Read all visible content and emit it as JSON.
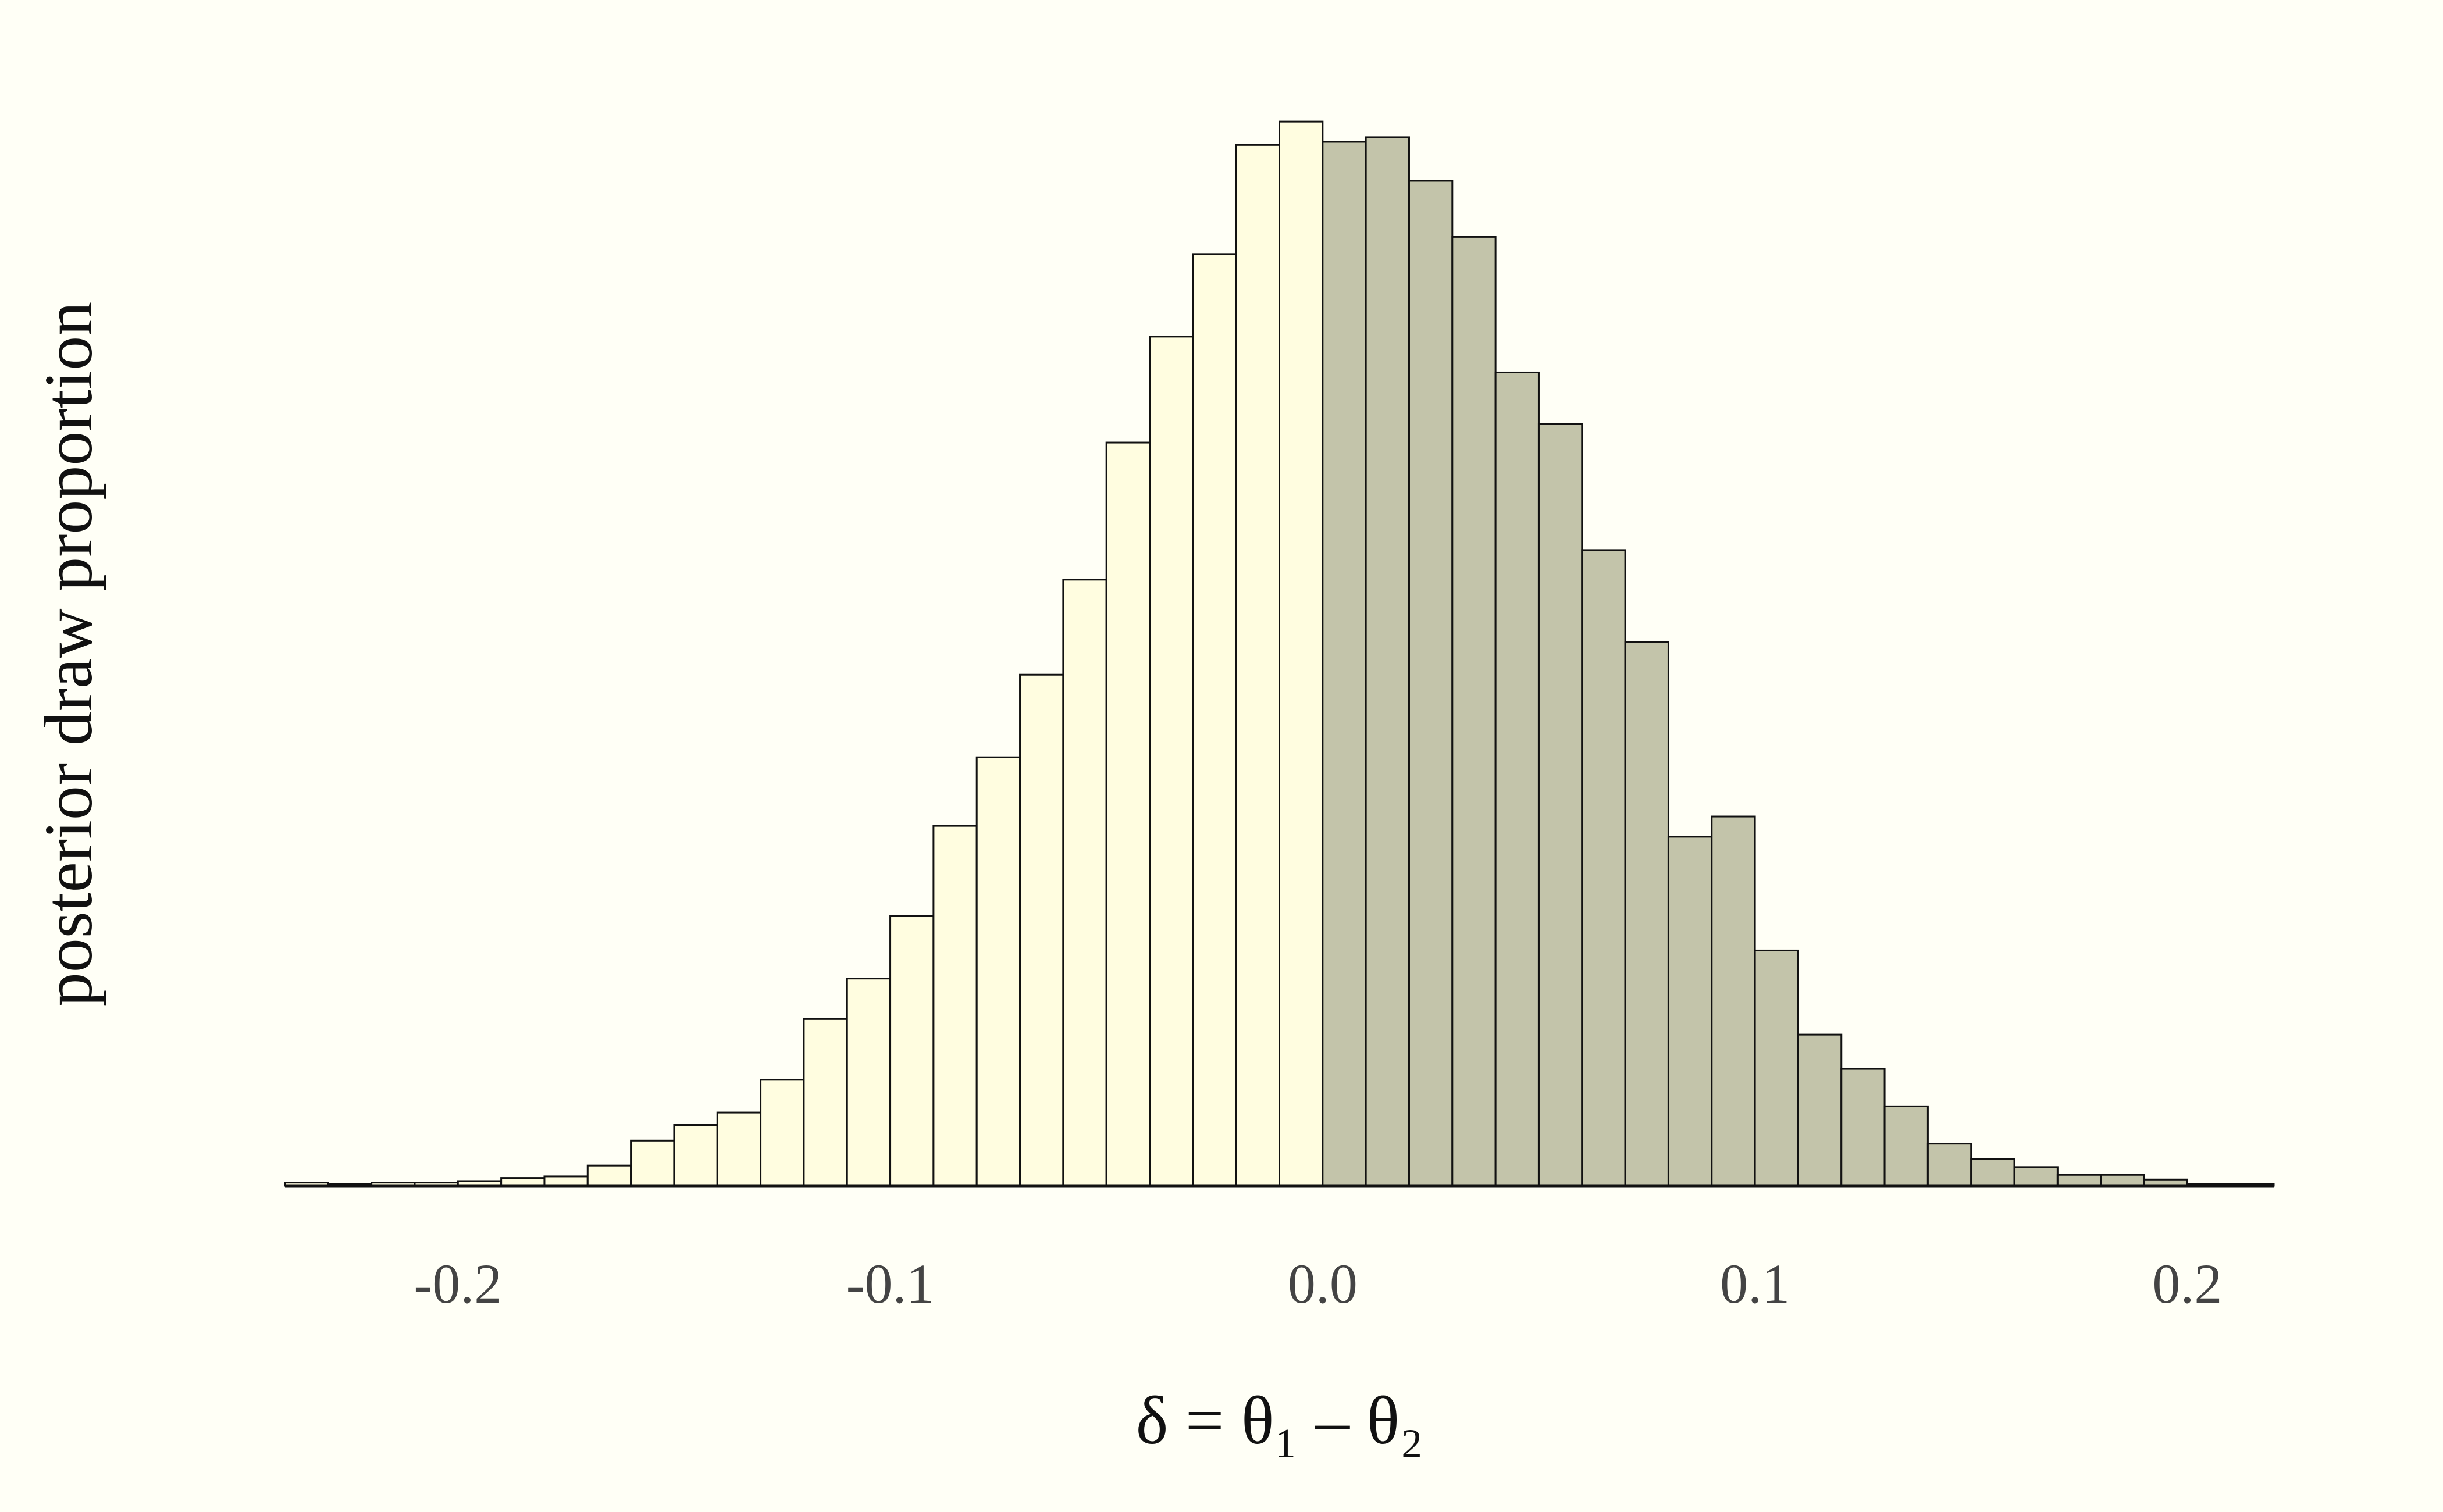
{
  "chart_data": {
    "type": "histogram",
    "x_label": "δ = θ₁ – θ₂",
    "y_label": "posterior draw proportion",
    "bins": [
      -0.24,
      -0.23,
      -0.22,
      -0.21,
      -0.2,
      -0.19,
      -0.18,
      -0.17,
      -0.16,
      -0.15,
      -0.14,
      -0.13,
      -0.12,
      -0.11,
      -0.1,
      -0.09,
      -0.08,
      -0.07,
      -0.06,
      -0.05,
      -0.04,
      -0.03,
      -0.02,
      -0.01,
      0.0,
      0.01,
      0.02,
      0.03,
      0.04,
      0.05,
      0.06,
      0.07,
      0.08,
      0.09,
      0.1,
      0.11,
      0.12,
      0.13,
      0.14,
      0.15,
      0.16,
      0.17,
      0.18,
      0.19,
      0.2,
      0.21,
      0.22
    ],
    "values": [
      0.0002,
      0.0001,
      0.0002,
      0.0002,
      0.0003,
      0.0005,
      0.0006,
      0.0013,
      0.0029,
      0.0039,
      0.0047,
      0.0068,
      0.0107,
      0.0133,
      0.0173,
      0.0231,
      0.0275,
      0.0328,
      0.0389,
      0.0477,
      0.0545,
      0.0598,
      0.0668,
      0.0683,
      0.067,
      0.0673,
      0.0645,
      0.0609,
      0.0522,
      0.0489,
      0.0408,
      0.0349,
      0.0224,
      0.0237,
      0.0151,
      0.0097,
      0.0075,
      0.0051,
      0.0027,
      0.0017,
      0.0012,
      0.0007,
      0.0007,
      0.0004,
      0.0001,
      0.0001
    ],
    "color": "#fffde0",
    "highlight": {
      "from": 0,
      "color": "#c3c4aa"
    },
    "xlim": [
      -0.24,
      0.22
    ],
    "ylim": [
      0,
      0.072
    ],
    "xticks": [
      -0.2,
      -0.1,
      {
        "value": 0,
        "label": "0.0"
      },
      0.1,
      0.2
    ]
  }
}
